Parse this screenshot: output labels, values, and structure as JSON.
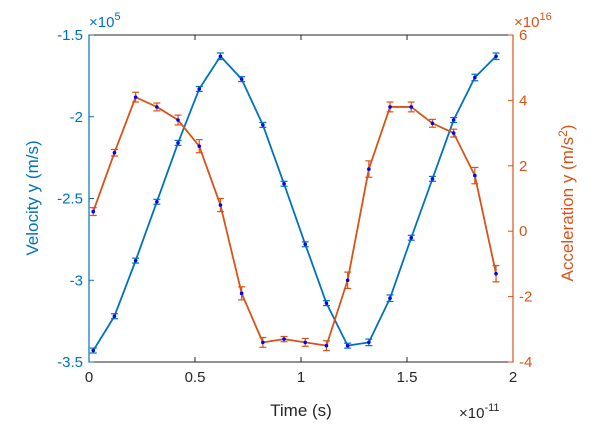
{
  "chart_data": {
    "type": "line",
    "xlabel": "Time (s)",
    "x_exponent_label": "×10",
    "x_exponent": "-11",
    "xlim": [
      0,
      2
    ],
    "xticks": [
      0,
      0.5,
      1,
      1.5,
      2
    ],
    "xtick_labels": [
      "0",
      "0.5",
      "1",
      "1.5",
      "2"
    ],
    "left_axis": {
      "label": "Velocity y (m/s)",
      "exponent_label": "×10",
      "exponent": "5",
      "ylim": [
        -3.5,
        -1.5
      ],
      "ticks": [
        -3.5,
        -3,
        -2.5,
        -2,
        -1.5
      ],
      "tick_labels": [
        "-3.5",
        "-3",
        "-2.5",
        "-2",
        "-1.5"
      ],
      "color": "#0072BD"
    },
    "right_axis": {
      "label_main": "Acceleration y (m/s",
      "label_sup": "2",
      "label_end": ")",
      "exponent_label": "×10",
      "exponent": "16",
      "ylim": [
        -4,
        6
      ],
      "ticks": [
        -4,
        -2,
        0,
        2,
        4,
        6
      ],
      "tick_labels": [
        "-4",
        "-2",
        "0",
        "2",
        "4",
        "6"
      ],
      "color": "#D95319"
    },
    "marker_color": "#0000FF",
    "series": [
      {
        "axis": "left",
        "x": [
          0.02,
          0.12,
          0.22,
          0.32,
          0.42,
          0.52,
          0.62,
          0.72,
          0.82,
          0.92,
          1.02,
          1.12,
          1.22,
          1.32,
          1.42,
          1.52,
          1.62,
          1.72,
          1.82,
          1.92
        ],
        "y": [
          -3.43,
          -3.22,
          -2.88,
          -2.52,
          -2.16,
          -1.83,
          -1.63,
          -1.77,
          -2.05,
          -2.41,
          -2.78,
          -3.14,
          -3.4,
          -3.38,
          -3.11,
          -2.74,
          -2.38,
          -2.02,
          -1.76,
          -1.63
        ],
        "err": [
          0.015,
          0.015,
          0.015,
          0.015,
          0.015,
          0.015,
          0.02,
          0.015,
          0.015,
          0.015,
          0.015,
          0.015,
          0.015,
          0.02,
          0.02,
          0.015,
          0.015,
          0.015,
          0.02,
          0.02
        ]
      },
      {
        "axis": "right",
        "x": [
          0.02,
          0.12,
          0.22,
          0.32,
          0.42,
          0.52,
          0.62,
          0.72,
          0.82,
          0.92,
          1.02,
          1.12,
          1.22,
          1.32,
          1.42,
          1.52,
          1.62,
          1.72,
          1.82,
          1.92
        ],
        "y": [
          0.6,
          2.4,
          4.1,
          3.8,
          3.4,
          2.6,
          0.8,
          -1.9,
          -3.4,
          -3.3,
          -3.4,
          -3.5,
          -1.5,
          1.9,
          3.8,
          3.8,
          3.3,
          3.0,
          1.7,
          -1.3
        ],
        "err": [
          0.12,
          0.1,
          0.15,
          0.12,
          0.15,
          0.2,
          0.2,
          0.2,
          0.15,
          0.08,
          0.12,
          0.15,
          0.25,
          0.25,
          0.15,
          0.15,
          0.12,
          0.12,
          0.25,
          0.25
        ]
      }
    ]
  }
}
